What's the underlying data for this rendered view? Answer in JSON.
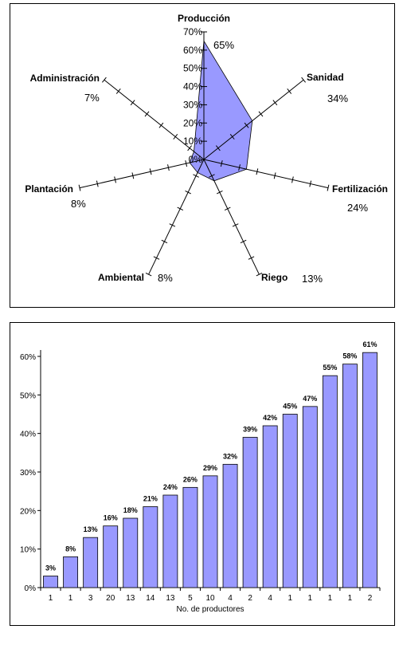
{
  "chart_data": [
    {
      "type": "radar",
      "ylim": [
        0,
        70
      ],
      "ticks": [
        "0%",
        "10%",
        "20%",
        "30%",
        "40%",
        "50%",
        "60%",
        "70%"
      ],
      "categories": [
        "Producción",
        "Sanidad",
        "Fertilización",
        "Riego",
        "Ambiental",
        "Plantación",
        "Administración"
      ],
      "values": [
        65,
        34,
        24,
        13,
        8,
        8,
        7
      ],
      "value_labels": [
        "65%",
        "34%",
        "24%",
        "13%",
        "8%",
        "8%",
        "7%"
      ],
      "fill_color": "#9999ff",
      "grid": false
    },
    {
      "type": "bar",
      "categories": [
        "1",
        "1",
        "3",
        "20",
        "13",
        "14",
        "13",
        "5",
        "10",
        "4",
        "2",
        "4",
        "1",
        "1",
        "1",
        "1",
        "2"
      ],
      "values": [
        3,
        8,
        13,
        16,
        18,
        21,
        24,
        26,
        29,
        32,
        39,
        42,
        45,
        47,
        55,
        58,
        61
      ],
      "value_labels": [
        "3%",
        "8%",
        "13%",
        "16%",
        "18%",
        "21%",
        "24%",
        "26%",
        "29%",
        "32%",
        "39%",
        "42%",
        "45%",
        "47%",
        "55%",
        "58%",
        "61%"
      ],
      "xlabel": "No. de productores",
      "ylabel": "",
      "ylim": [
        0,
        60
      ],
      "yticks": [
        "0%",
        "10%",
        "20%",
        "30%",
        "40%",
        "50%",
        "60%"
      ],
      "bar_color": "#9999ff",
      "grid": false
    }
  ]
}
